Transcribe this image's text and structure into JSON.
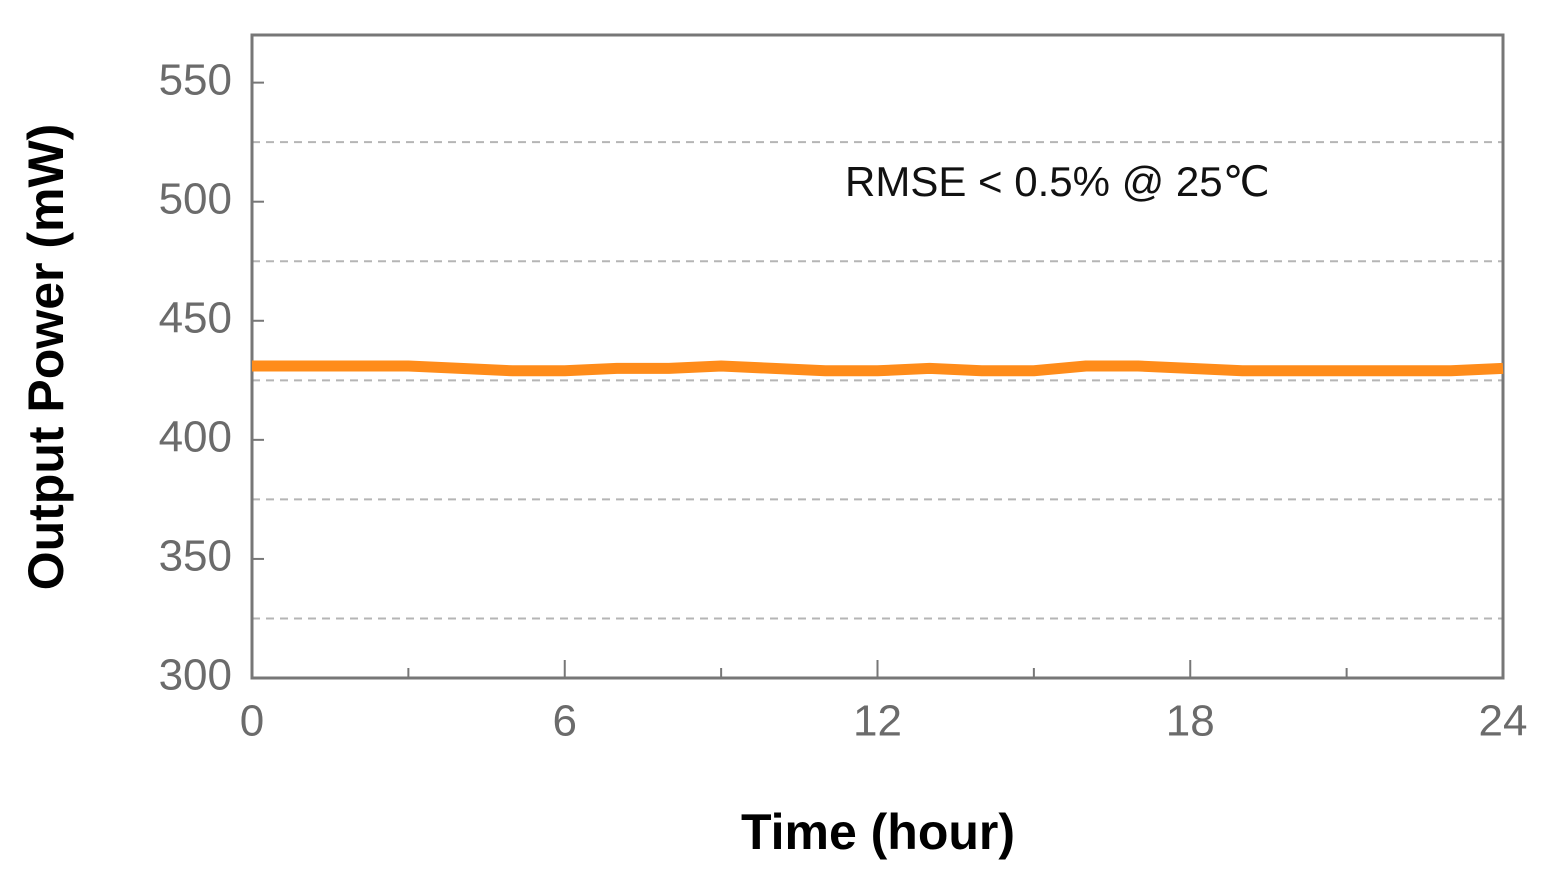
{
  "chart_data": {
    "type": "line",
    "xlabel": "Time (hour)",
    "ylabel": "Output Power (mW)",
    "annotation": "RMSE < 0.5% @ 25℃",
    "x": [
      0,
      1,
      2,
      3,
      4,
      5,
      6,
      7,
      8,
      9,
      10,
      11,
      12,
      13,
      14,
      15,
      16,
      17,
      18,
      19,
      20,
      21,
      22,
      23,
      24
    ],
    "series": [
      {
        "color": "#ff8c1a",
        "values": [
          431,
          431,
          431,
          431,
          430,
          429,
          429,
          430,
          430,
          431,
          430,
          429,
          429,
          430,
          429,
          429,
          431,
          431,
          430,
          429,
          429,
          429,
          429,
          429,
          430
        ]
      }
    ],
    "xlim": [
      0,
      24
    ],
    "xticks": [
      0,
      6,
      12,
      18,
      24
    ],
    "minor_xticks": [
      3,
      9,
      15,
      21
    ],
    "ylim": [
      300,
      570
    ],
    "yticks": [
      300,
      350,
      400,
      450,
      500,
      550
    ],
    "minor_yticks": [
      325,
      375,
      425,
      475,
      525
    ],
    "grid": true
  }
}
